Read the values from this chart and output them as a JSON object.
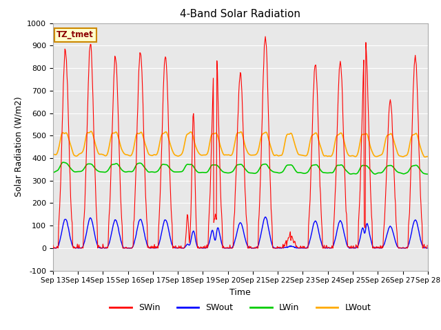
{
  "title": "4-Band Solar Radiation",
  "xlabel": "Time",
  "ylabel": "Solar Radiation (W/m2)",
  "ylim": [
    -100,
    1000
  ],
  "yticks": [
    -100,
    0,
    100,
    200,
    300,
    400,
    500,
    600,
    700,
    800,
    900,
    1000
  ],
  "xticklabels": [
    "Sep 13",
    "Sep 14",
    "Sep 15",
    "Sep 16",
    "Sep 17",
    "Sep 18",
    "Sep 19",
    "Sep 20",
    "Sep 21",
    "Sep 22",
    "Sep 23",
    "Sep 24",
    "Sep 25",
    "Sep 26",
    "Sep 27",
    "Sep 28"
  ],
  "colors": {
    "SWin": "#ff0000",
    "SWout": "#0000ff",
    "LWin": "#00cc00",
    "LWout": "#ffaa00"
  },
  "annotation_text": "TZ_tmet",
  "annotation_facecolor": "#ffffcc",
  "annotation_edgecolor": "#cc8800",
  "background_color": "#e8e8e8",
  "fig_background": "#ffffff",
  "grid_color": "#ffffff",
  "title_fontsize": 11,
  "axis_label_fontsize": 9
}
